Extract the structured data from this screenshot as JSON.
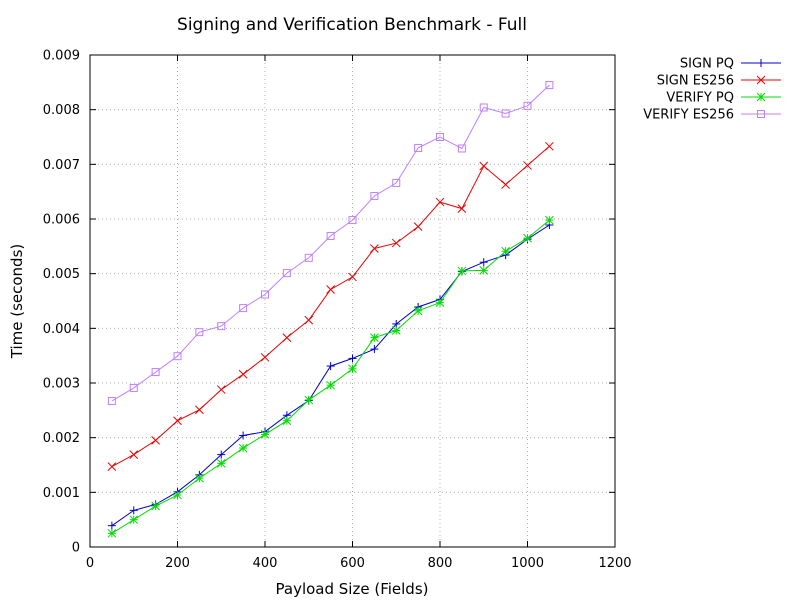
{
  "chart_data": {
    "type": "line",
    "title": "Signing and Verification Benchmark - Full",
    "xlabel": "Payload Size (Fields)",
    "ylabel": "Time (seconds)",
    "xlim": [
      0,
      1200
    ],
    "ylim": [
      0,
      0.009
    ],
    "xticks": [
      0,
      200,
      400,
      600,
      800,
      1000,
      1200
    ],
    "xtick_labels": [
      "0",
      "200",
      "400",
      "600",
      "800",
      "1000",
      "1200"
    ],
    "yticks": [
      0,
      0.001,
      0.002,
      0.003,
      0.004,
      0.005,
      0.006,
      0.007,
      0.008,
      0.009
    ],
    "ytick_labels": [
      "0",
      "0.001",
      "0.002",
      "0.003",
      "0.004",
      "0.005",
      "0.006",
      "0.007",
      "0.008",
      "0.009"
    ],
    "grid": true,
    "legend_position": "outside-top-right",
    "x": [
      50,
      100,
      150,
      200,
      250,
      300,
      350,
      400,
      450,
      500,
      550,
      600,
      650,
      700,
      750,
      800,
      850,
      900,
      950,
      1000,
      1050
    ],
    "series": [
      {
        "name": "SIGN PQ",
        "color": "#0000cc",
        "marker": "plus",
        "values": [
          0.00039,
          0.00067,
          0.00078,
          0.00101,
          0.00132,
          0.00169,
          0.00204,
          0.00211,
          0.00241,
          0.00268,
          0.00331,
          0.00345,
          0.00362,
          0.00408,
          0.00439,
          0.00453,
          0.00504,
          0.00521,
          0.00534,
          0.00563,
          0.00589
        ]
      },
      {
        "name": "SIGN ES256",
        "color": "#ee0000",
        "marker": "cross",
        "values": [
          0.00147,
          0.00169,
          0.00195,
          0.00231,
          0.00251,
          0.00288,
          0.00316,
          0.00347,
          0.00383,
          0.00415,
          0.00471,
          0.00494,
          0.00546,
          0.00556,
          0.00586,
          0.00631,
          0.00619,
          0.00697,
          0.00663,
          0.00698,
          0.00733
        ]
      },
      {
        "name": "VERIFY PQ",
        "color": "#00dd00",
        "marker": "star",
        "values": [
          0.00025,
          0.0005,
          0.00075,
          0.00095,
          0.00126,
          0.00153,
          0.00181,
          0.00206,
          0.00231,
          0.00269,
          0.00296,
          0.00326,
          0.00383,
          0.00396,
          0.00432,
          0.00447,
          0.00505,
          0.00506,
          0.00541,
          0.00565,
          0.00598
        ]
      },
      {
        "name": "VERIFY ES256",
        "color": "#bf80ff",
        "marker": "square",
        "values": [
          0.00267,
          0.00291,
          0.0032,
          0.00349,
          0.00393,
          0.00404,
          0.00437,
          0.00462,
          0.00501,
          0.00529,
          0.00569,
          0.00598,
          0.00642,
          0.00666,
          0.0073,
          0.0075,
          0.00729,
          0.00804,
          0.00793,
          0.00807,
          0.00845
        ]
      }
    ]
  }
}
